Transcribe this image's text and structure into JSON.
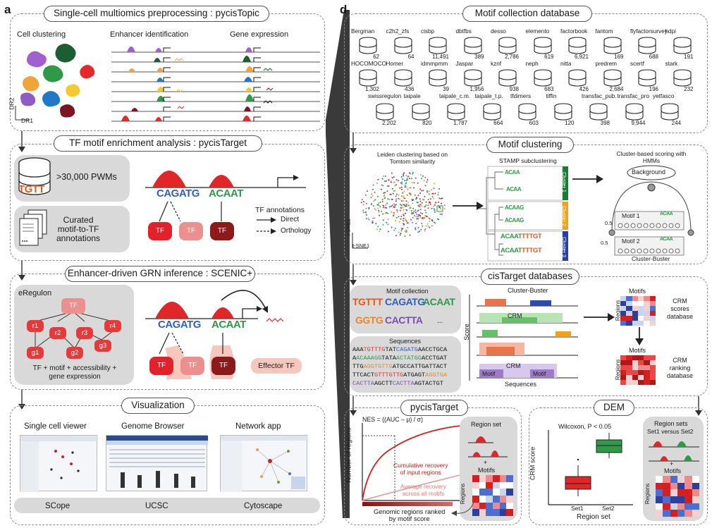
{
  "panel_a": {
    "letter": "a",
    "s1": {
      "title": "Single-cell multiomics preprocessing : pycisTopic",
      "cell_clustering": "Cell clustering",
      "enhancer": "Enhancer identification",
      "gene_expression": "Gene expression",
      "dr1": "DR1",
      "dr2": "DR2"
    },
    "s2": {
      "title": "TF motif enrichment analysis : pycisTarget",
      "pwms": ">30,000 PWMs",
      "curated": "Curated\nmotif-to-TF\nannotations",
      "motif_logo_1": "CAGATG",
      "motif_logo_2": "ACAAT",
      "tf_labels": [
        "TF",
        "TF",
        "TF"
      ],
      "tf_annotations": "TF annotations",
      "direct": "Direct",
      "orthology": "Orthology"
    },
    "s3": {
      "title": "Enhancer-driven GRN inference : SCENIC+",
      "eregulon": "eRegulon",
      "root": "TF",
      "regions": [
        "r1",
        "r2",
        "r3",
        "r4"
      ],
      "genes": [
        "g1",
        "g2",
        "g3"
      ],
      "caption": "TF + motif + accessibility +\ngene expression",
      "tf_labels": [
        "TF",
        "TF",
        "TF"
      ],
      "effector": "Effector TF"
    },
    "s4": {
      "title": "Visualization",
      "apps": [
        {
          "heading": "Single cell viewer",
          "footer": "SCope"
        },
        {
          "heading": "Genome Browser",
          "footer": "UCSC"
        },
        {
          "heading": "Network app",
          "footer": "Cytoscape"
        }
      ]
    }
  },
  "panel_d": {
    "letter": "d",
    "motif_db": {
      "title": "Motif collection database",
      "row1": [
        {
          "name": "Bergman",
          "count": "62"
        },
        {
          "name": "c2h2_zfs",
          "count": "64"
        },
        {
          "name": "cisbp",
          "count": "11,491"
        },
        {
          "name": "dbtfbs",
          "count": "389"
        },
        {
          "name": "desso",
          "count": "2,786"
        },
        {
          "name": "elemento",
          "count": "619"
        },
        {
          "name": "factorbook",
          "count": "6,921"
        },
        {
          "name": "fantom",
          "count": "169"
        },
        {
          "name": "flyfactorsurvey",
          "count": "688"
        },
        {
          "name": "hdpi",
          "count": "191"
        }
      ],
      "row2": [
        {
          "name": "HOCOMOCO",
          "count": "1,302"
        },
        {
          "name": "Homer",
          "count": "436"
        },
        {
          "name": "idmmpmm",
          "count": "39"
        },
        {
          "name": "Jaspar",
          "count": "1,956"
        },
        {
          "name": "kznf",
          "count": "938"
        },
        {
          "name": "neph",
          "count": "683"
        },
        {
          "name": "nitta",
          "count": "426"
        },
        {
          "name": "predrem",
          "count": "2,684"
        },
        {
          "name": "scertf",
          "count": "196"
        },
        {
          "name": "stark",
          "count": "232"
        }
      ],
      "row3": [
        {
          "name": "swissregulon",
          "count": "2,202"
        },
        {
          "name": "taipale",
          "count": "820"
        },
        {
          "name": "taipale_c.m.",
          "count": "1,787"
        },
        {
          "name": "taipale_t.p.",
          "count": "664"
        },
        {
          "name": "tfdimers",
          "count": "603"
        },
        {
          "name": "tiffin",
          "count": "120"
        },
        {
          "name": "transfac_pub.",
          "count": "398"
        },
        {
          "name": "transfac_pro",
          "count": "9,944"
        },
        {
          "name": "yetfasco",
          "count": "244"
        }
      ]
    },
    "clustering": {
      "title": "Motif clustering",
      "leiden": "Leiden clustering  based on\nTomtom similarity",
      "tsne1": "t-SNE1",
      "tsne2": "t-SNE2",
      "stamp": "STAMP subclustering",
      "clusters": [
        "Cluster 1",
        "Cluster 2",
        "Cluster 3"
      ],
      "hmm": "Cluster-based scoring with\nHMMs",
      "background": "Background",
      "motif1": "Motif 1",
      "motif2": "Motif 2",
      "p1": "0.5",
      "p2": "0.5",
      "cluster_buster": "Cluster-Buster"
    },
    "cistarget": {
      "title": "cisTarget databases",
      "motif_collection": "Motif collection",
      "logos": [
        "TGTTT",
        "CAGATG",
        "ACAAT",
        "GGTG",
        "CACTTA",
        "..."
      ],
      "sequences_label": "Sequences",
      "sequences": [
        [
          [
            "AAA",
            "#111"
          ],
          [
            "TGTTTG",
            "#e03030"
          ],
          [
            "TAT",
            "#111"
          ],
          [
            "CAGATG",
            "#2f5fc0"
          ],
          [
            "AACCTGCA",
            "#111"
          ]
        ],
        [
          [
            "A",
            "#111"
          ],
          [
            "ACAAAGG",
            "#2e9a48"
          ],
          [
            "TATA",
            "#111"
          ],
          [
            "ACTATGG",
            "#2e9a48"
          ],
          [
            "ACCTGAT",
            "#111"
          ]
        ],
        [
          [
            "TTG",
            "#111"
          ],
          [
            "AGGTGTTG",
            "#e8882a"
          ],
          [
            "ATGCCATT",
            "#111"
          ],
          [
            "GATTACT",
            "#111"
          ]
        ],
        [
          [
            "TTCACT",
            "#111"
          ],
          [
            "GTTTGTTG",
            "#e03030"
          ],
          [
            "ATGAGT",
            "#111"
          ],
          [
            "AGGTGA",
            "#e8882a"
          ]
        ],
        [
          [
            "CACTTA",
            "#7a4fb0"
          ],
          [
            "AGCTT",
            "#111"
          ],
          [
            "CACTTA",
            "#7a4fb0"
          ],
          [
            "AGTACTGT",
            "#111"
          ]
        ]
      ],
      "cluster_buster": "Cluster-Buster",
      "crm": "CRM",
      "crm2": "CRM",
      "motif": "Motif",
      "motif2": "Motif",
      "score": "Score",
      "sequences_axis": "Sequences",
      "motifs_top": "Motifs",
      "regions_top": "Regions",
      "scores_db": "CRM\nscores\ndatabase",
      "motifs_bottom": "Motifs",
      "regions_bottom": "Regions",
      "ranking_db": "CRM\nranking\ndatabase"
    },
    "pycistarget": {
      "title": "pycisTarget",
      "nes": "NES = ((AUC – μ) / σ)",
      "ylabel": "Number of regions",
      "cumulative": "Cumulative recovery\nof input regions",
      "average": "Average recovery\nacross all motifs",
      "xlabel": "Genomic regions ranked\nby motif score",
      "region_set": "Region set",
      "plus": "+",
      "motifs": "Motifs",
      "regions": "Regions"
    },
    "dem": {
      "title": "DEM",
      "wilcoxon": "Wilcoxon, P < 0.05",
      "ylabel": "CRM score",
      "xlabel": "Region set",
      "set1": "Set1",
      "set2": "Set2",
      "region_sets": "Region sets",
      "set_compare": "Set1 versus Set2",
      "plus": "+",
      "motifs": "Motifs",
      "regions": "Regions"
    }
  }
}
